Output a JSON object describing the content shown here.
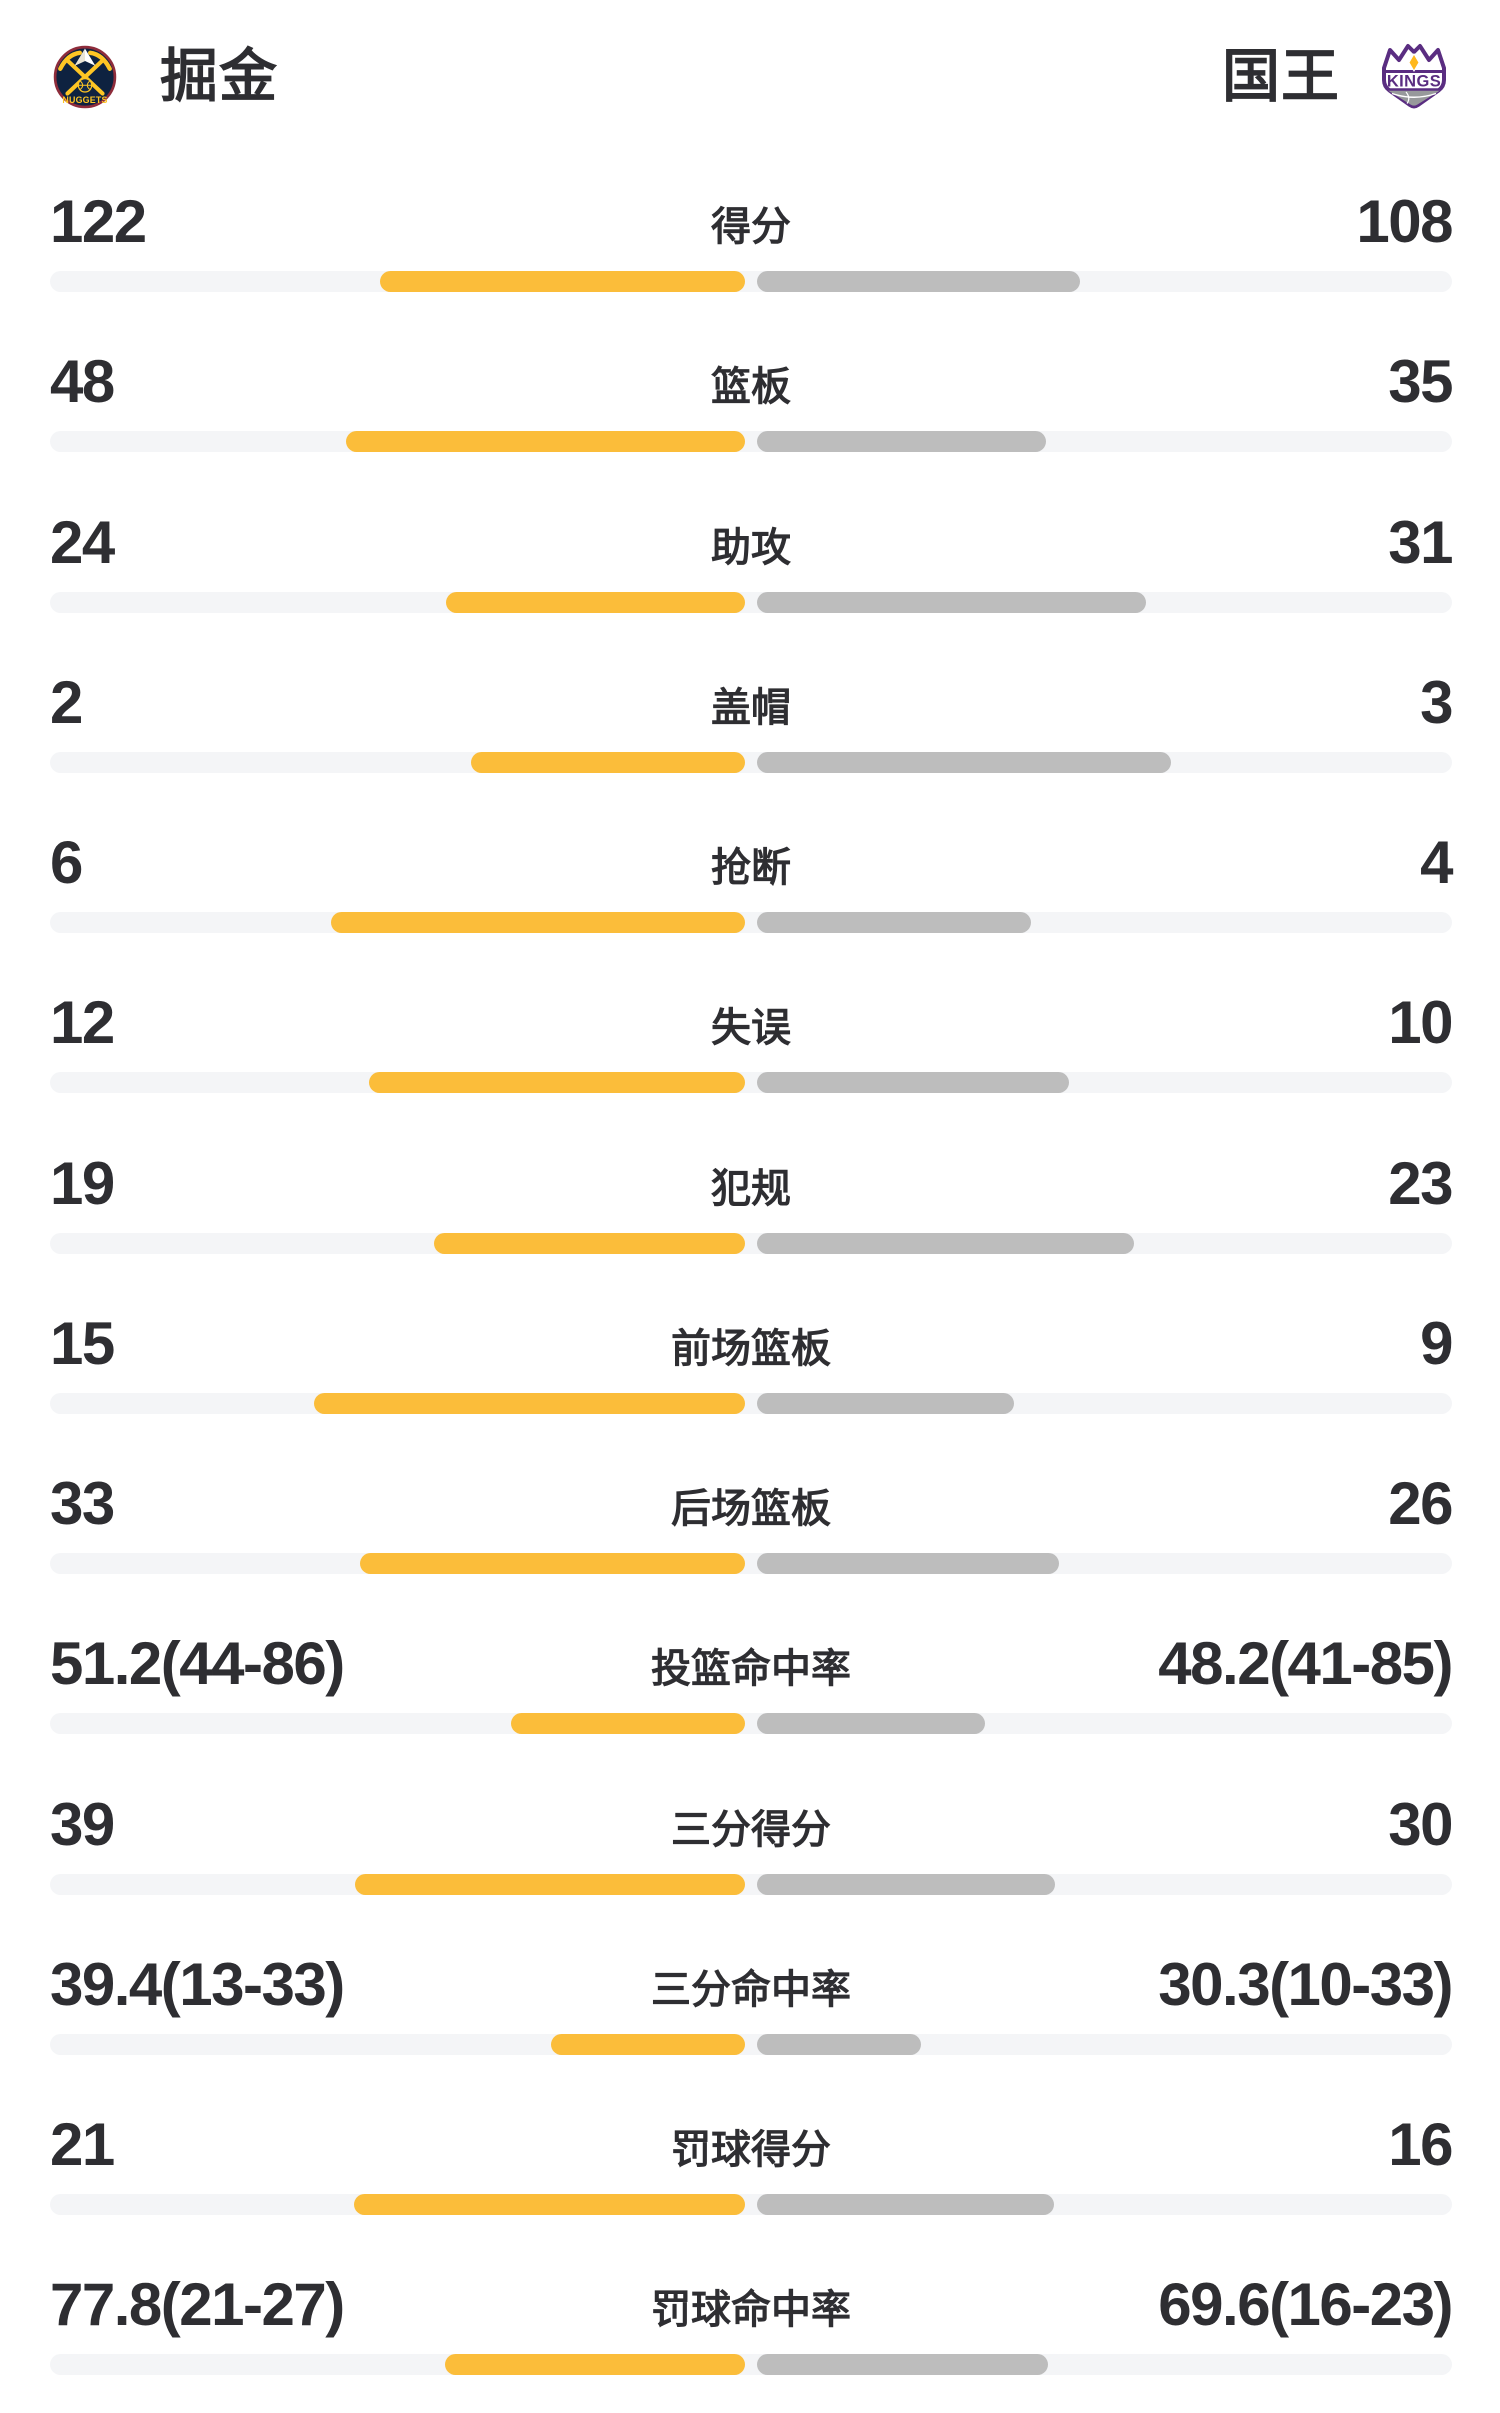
{
  "header": {
    "home": {
      "name": "掘金",
      "logo": "nuggets-logo",
      "logo_text": "NUGGETS"
    },
    "away": {
      "name": "国王",
      "logo": "kings-logo",
      "logo_text": "KINGS"
    }
  },
  "chart_data": {
    "type": "bar",
    "orientation": "horizontal-paired",
    "legend_position": "top",
    "teams": [
      "掘金",
      "国王"
    ],
    "colors": {
      "home": "#FBBD3A",
      "away": "#BDBDBD",
      "track": "#F4F5F7",
      "text": "#2E2E32",
      "background": "#FFFFFF"
    },
    "rows": [
      {
        "label": "得分",
        "home": "122",
        "away": "108",
        "home_value": 122,
        "away_value": 108,
        "home_len": 371,
        "away_len": 329
      },
      {
        "label": "篮板",
        "home": "48",
        "away": "35",
        "home_value": 48,
        "away_value": 35,
        "home_len": 405,
        "away_len": 295
      },
      {
        "label": "助攻",
        "home": "24",
        "away": "31",
        "home_value": 24,
        "away_value": 31,
        "home_len": 305,
        "away_len": 395
      },
      {
        "label": "盖帽",
        "home": "2",
        "away": "3",
        "home_value": 2,
        "away_value": 3,
        "home_len": 280,
        "away_len": 420
      },
      {
        "label": "抢断",
        "home": "6",
        "away": "4",
        "home_value": 6,
        "away_value": 4,
        "home_len": 420,
        "away_len": 280
      },
      {
        "label": "失误",
        "home": "12",
        "away": "10",
        "home_value": 12,
        "away_value": 10,
        "home_len": 382,
        "away_len": 318
      },
      {
        "label": "犯规",
        "home": "19",
        "away": "23",
        "home_value": 19,
        "away_value": 23,
        "home_len": 317,
        "away_len": 383
      },
      {
        "label": "前场篮板",
        "home": "15",
        "away": "9",
        "home_value": 15,
        "away_value": 9,
        "home_len": 437,
        "away_len": 263
      },
      {
        "label": "后场篮板",
        "home": "33",
        "away": "26",
        "home_value": 33,
        "away_value": 26,
        "home_len": 391,
        "away_len": 308
      },
      {
        "label": "投篮命中率",
        "home": "51.2(44-86)",
        "away": "48.2(41-85)",
        "home_value": 51.2,
        "away_value": 48.2,
        "home_len": 240,
        "away_len": 234
      },
      {
        "label": "三分得分",
        "home": "39",
        "away": "30",
        "home_value": 39,
        "away_value": 30,
        "home_len": 396,
        "away_len": 304
      },
      {
        "label": "三分命中率",
        "home": "39.4(13-33)",
        "away": "30.3(10-33)",
        "home_value": 39.4,
        "away_value": 30.3,
        "home_len": 200,
        "away_len": 170
      },
      {
        "label": "罚球得分",
        "home": "21",
        "away": "16",
        "home_value": 21,
        "away_value": 16,
        "home_len": 397,
        "away_len": 303
      },
      {
        "label": "罚球命中率",
        "home": "77.8(21-27)",
        "away": "69.6(16-23)",
        "home_value": 77.8,
        "away_value": 69.6,
        "home_len": 306,
        "away_len": 297
      }
    ]
  }
}
